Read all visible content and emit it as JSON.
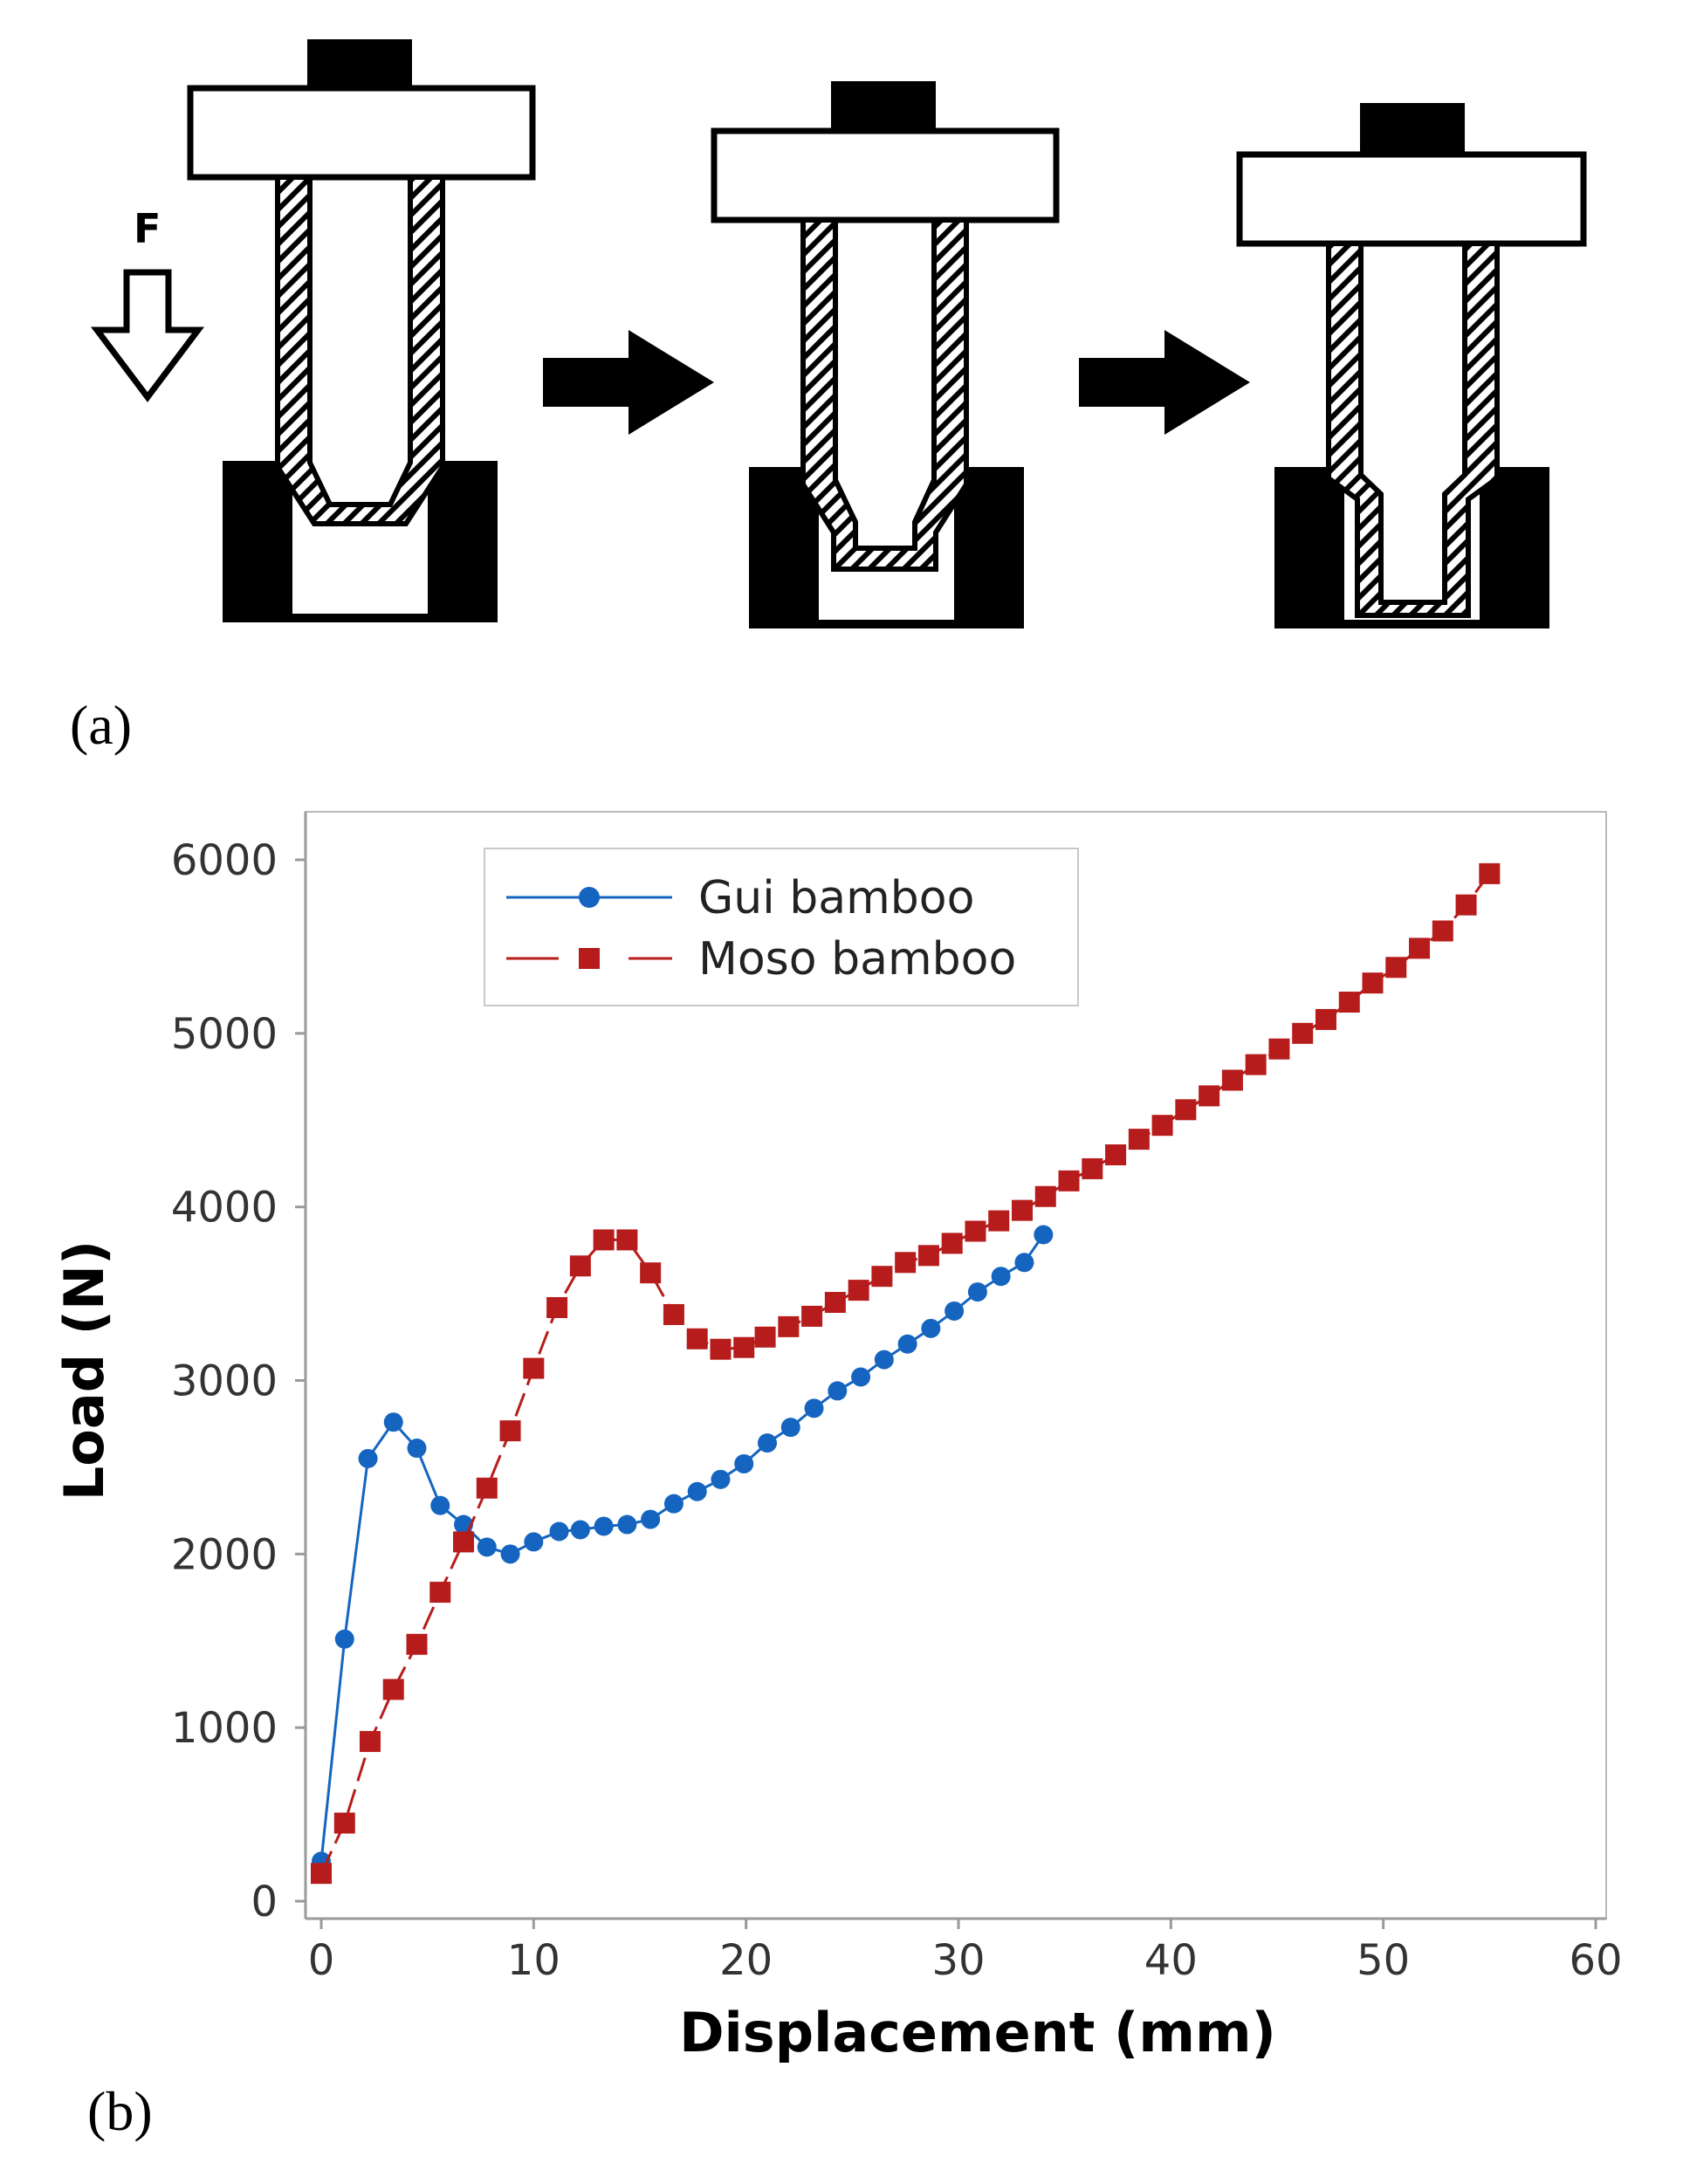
{
  "figure": {
    "panel_a_label": "(a)",
    "panel_b_label": "(b)",
    "force_label": "F",
    "icons": [
      "force-arrow-icon",
      "process-arrow-icon",
      "process-arrow-icon"
    ]
  },
  "chart_data": {
    "type": "line",
    "xlabel": "Displacement (mm)",
    "ylabel": "Load (N)",
    "xlim": [
      0,
      60
    ],
    "ylim": [
      0,
      6000
    ],
    "xticks": [
      0,
      10,
      20,
      30,
      40,
      50,
      60
    ],
    "yticks": [
      0,
      1000,
      2000,
      3000,
      4000,
      5000,
      6000
    ],
    "grid": false,
    "legend_position": "top-left",
    "series": [
      {
        "name": "Gui bamboo",
        "color": "#1565c0",
        "marker": "circle",
        "line_style": "solid",
        "x": [
          0,
          1.1,
          2.2,
          3.4,
          4.5,
          5.6,
          6.7,
          7.8,
          8.9,
          10.0,
          11.2,
          12.2,
          13.3,
          14.4,
          15.5,
          16.6,
          17.7,
          18.8,
          19.9,
          21.0,
          22.1,
          23.2,
          24.3,
          25.4,
          26.5,
          27.6,
          28.7,
          29.8,
          30.9,
          32.0,
          33.1,
          34.0
        ],
        "y": [
          230,
          1510,
          2550,
          2760,
          2610,
          2280,
          2170,
          2040,
          2000,
          2070,
          2130,
          2140,
          2160,
          2170,
          2200,
          2290,
          2360,
          2430,
          2520,
          2640,
          2730,
          2840,
          2940,
          3020,
          3120,
          3210,
          3300,
          3400,
          3510,
          3600,
          3680,
          3840
        ]
      },
      {
        "name": "Moso bamboo",
        "color": "#b71c1c",
        "marker": "square",
        "line_style": "dashed",
        "x": [
          0,
          1.1,
          2.3,
          3.4,
          4.5,
          5.6,
          6.7,
          7.8,
          8.9,
          10.0,
          11.1,
          12.2,
          13.3,
          14.4,
          15.5,
          16.6,
          17.7,
          18.8,
          19.9,
          20.9,
          22.0,
          23.1,
          24.2,
          25.3,
          26.4,
          27.5,
          28.6,
          29.7,
          30.8,
          31.9,
          33.0,
          34.1,
          35.2,
          36.3,
          37.4,
          38.5,
          39.6,
          40.7,
          41.8,
          42.9,
          44.0,
          45.1,
          46.2,
          47.3,
          48.4,
          49.5,
          50.6,
          51.7,
          52.8,
          53.9,
          55.0
        ],
        "y": [
          160,
          450,
          920,
          1220,
          1480,
          1780,
          2070,
          2380,
          2710,
          3070,
          3420,
          3660,
          3810,
          3810,
          3620,
          3380,
          3240,
          3180,
          3190,
          3250,
          3310,
          3370,
          3450,
          3520,
          3600,
          3680,
          3720,
          3790,
          3860,
          3920,
          3980,
          4060,
          4150,
          4220,
          4300,
          4390,
          4470,
          4560,
          4640,
          4730,
          4820,
          4910,
          5000,
          5080,
          5180,
          5290,
          5380,
          5490,
          5590,
          5740,
          5920
        ]
      }
    ]
  }
}
